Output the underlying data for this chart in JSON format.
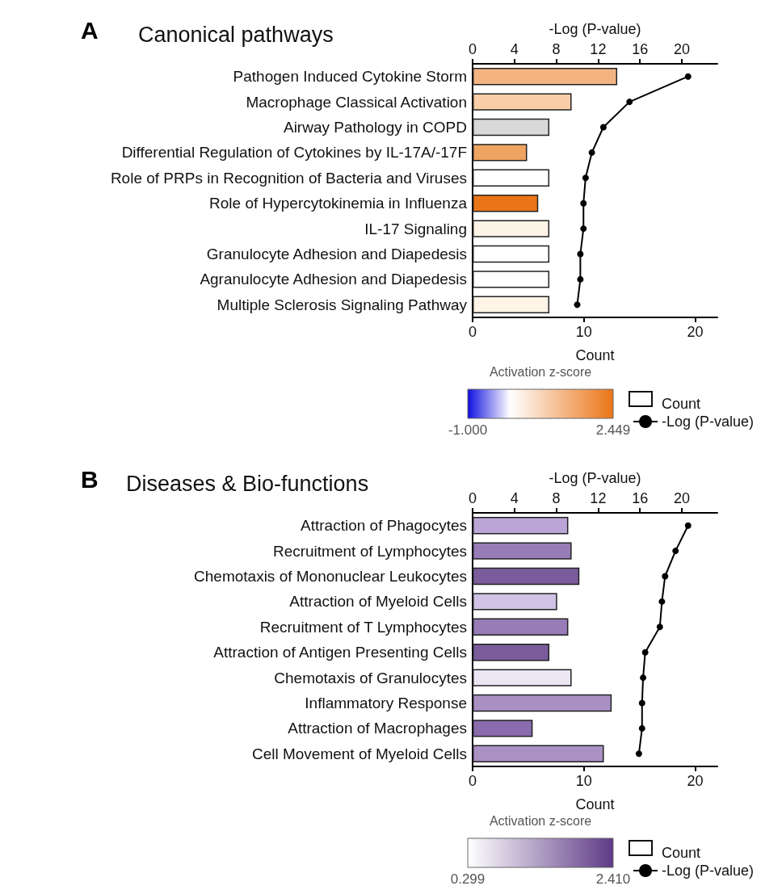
{
  "chart_data": [
    {
      "type": "bar",
      "orientation": "horizontal",
      "title": "Canonical pathways",
      "annotations": [
        "A"
      ],
      "xlabel": "Count",
      "x2label": "-Log (P-value)",
      "clabel": "Activation z-score",
      "clim": [
        -1,
        2.449
      ],
      "cticks": [
        {
          "value": -1,
          "label": "-1.000"
        },
        {
          "value": 2.449,
          "label": "2.449"
        }
      ],
      "categories": [
        "Pathogen Induced Cytokine Storm",
        "Macrophage Classical Activation",
        "Airway Pathology in COPD",
        "Differential Regulation of Cytokines by IL-17A/-17F",
        "Role of PRPs in Recognition of Bacteria and Viruses",
        "Role of Hypercytokinemia in Influenza",
        "IL-17 Signaling",
        "Granulocyte Adhesion and Diapedesis",
        "Agranulocyte Adhesion and Diapedesis",
        "Multiple Sclerosis Signaling Pathway"
      ],
      "xlim": [
        0,
        22
      ],
      "xticks": [
        0,
        10,
        20
      ],
      "x2lim": [
        0,
        23.4
      ],
      "x2ticks": [
        0,
        4,
        8,
        12,
        16,
        20
      ],
      "legend": "bottom",
      "marker": "circle",
      "grid": false,
      "series": [
        {
          "name": "Count",
          "type": "bar",
          "color": "#ffffff",
          "colors": [
            "#f3b482",
            "#f8cda8",
            "#d9d9d9",
            "#f0a462",
            "#ffffff",
            "#ea7517",
            "#fdf3e6",
            "#ffffff",
            "#ffffff",
            "#fdf3e6"
          ],
          "values": [
            13,
            8.9,
            6.9,
            4.9,
            6.9,
            5.9,
            6.9,
            6.9,
            6.9,
            6.9
          ]
        },
        {
          "name": "-Log (P-value)",
          "type": "line",
          "axis": "x2",
          "color": "#000000",
          "values": [
            20.6,
            15.0,
            12.5,
            11.4,
            10.8,
            10.6,
            10.6,
            10.3,
            10.3,
            10.0
          ]
        }
      ]
    },
    {
      "type": "bar",
      "orientation": "horizontal",
      "title": "Diseases & Bio-functions",
      "annotations": [
        "B"
      ],
      "xlabel": "Count",
      "x2label": "-Log (P-value)",
      "clabel": "Activation z-score",
      "clim": [
        0.299,
        2.41
      ],
      "cticks": [
        {
          "value": 0.299,
          "label": "0.299"
        },
        {
          "value": 2.41,
          "label": "2.410"
        }
      ],
      "categories": [
        "Attraction of Phagocytes",
        "Recruitment of Lymphocytes",
        "Chemotaxis of Mononuclear Leukocytes",
        "Attraction of Myeloid Cells",
        "Recruitment of T Lymphocytes",
        "Attraction of Antigen Presenting Cells",
        "Chemotaxis of Granulocytes",
        "Inflammatory Response",
        "Attraction of Macrophages",
        "Cell Movement of Myeloid Cells"
      ],
      "xlim": [
        0,
        22
      ],
      "xticks": [
        0,
        10,
        20
      ],
      "x2lim": [
        0,
        23.4
      ],
      "x2ticks": [
        0,
        4,
        8,
        12,
        16,
        20
      ],
      "legend": "bottom",
      "marker": "circle",
      "grid": false,
      "series": [
        {
          "name": "Count",
          "type": "bar",
          "color": "#ffffff",
          "colors": [
            "#bba5d6",
            "#977cb7",
            "#7a5c9c",
            "#d0c2e4",
            "#977cb7",
            "#7a5c9c",
            "#ebe5f4",
            "#a991c4",
            "#8a6bad",
            "#a991c4"
          ],
          "values": [
            8.6,
            8.9,
            9.6,
            7.6,
            8.6,
            6.9,
            8.9,
            12.5,
            5.4,
            11.8
          ]
        },
        {
          "name": "-Log (P-value)",
          "type": "line",
          "axis": "x2",
          "color": "#000000",
          "values": [
            20.6,
            19.4,
            18.4,
            18.1,
            17.9,
            16.5,
            16.3,
            16.2,
            16.2,
            15.9
          ]
        }
      ]
    }
  ]
}
